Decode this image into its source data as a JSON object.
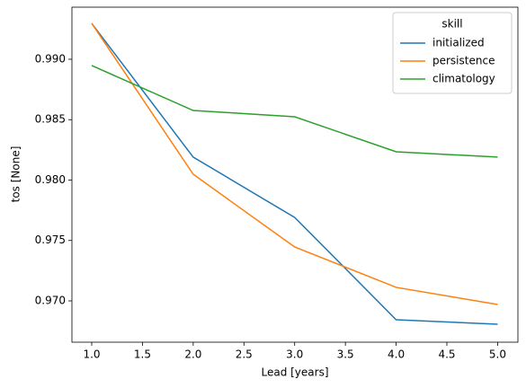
{
  "chart_data": {
    "type": "line",
    "x_label": "Lead [years]",
    "y_label": "tos [None]",
    "legend_title": "skill",
    "legend": "upper right",
    "x": [
      1,
      2,
      3,
      4,
      5
    ],
    "series": [
      {
        "name": "initialized",
        "color": "#1f77b4",
        "values": [
          0.99297,
          0.9819,
          0.97691,
          0.96844,
          0.96807
        ]
      },
      {
        "name": "persistence",
        "color": "#ff7f0e",
        "values": [
          0.99297,
          0.98048,
          0.97446,
          0.97112,
          0.9697
        ]
      },
      {
        "name": "climatology",
        "color": "#2ca02c",
        "values": [
          0.98948,
          0.98576,
          0.98524,
          0.98234,
          0.9819
        ]
      }
    ],
    "xlim": [
      0.805,
      5.2
    ],
    "ylim": [
      0.96658,
      0.99431
    ],
    "xticks": [
      {
        "value": 1,
        "label": "1.0"
      },
      {
        "value": 1.5,
        "label": "1.5"
      },
      {
        "value": 2,
        "label": "2.0"
      },
      {
        "value": 2.5,
        "label": "2.5"
      },
      {
        "value": 3,
        "label": "3.0"
      },
      {
        "value": 3.5,
        "label": "3.5"
      },
      {
        "value": 4,
        "label": "4.0"
      },
      {
        "value": 4.5,
        "label": "4.5"
      },
      {
        "value": 5,
        "label": "5.0"
      }
    ],
    "yticks": [
      {
        "value": 0.97,
        "label": "0.970"
      },
      {
        "value": 0.975,
        "label": "0.975"
      },
      {
        "value": 0.98,
        "label": "0.980"
      },
      {
        "value": 0.985,
        "label": "0.985"
      },
      {
        "value": 0.99,
        "label": "0.990"
      }
    ]
  }
}
